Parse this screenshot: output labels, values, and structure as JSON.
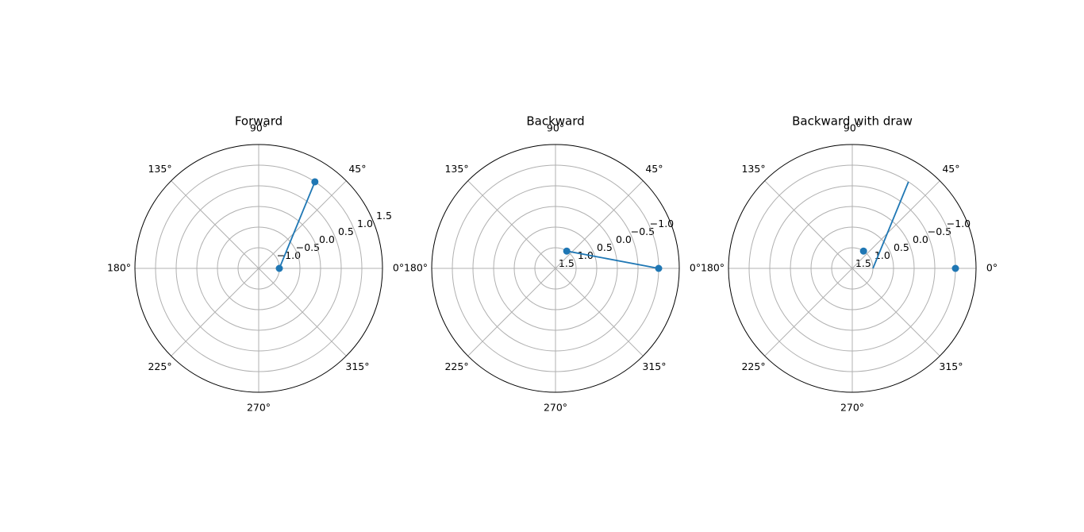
{
  "chart_data": [
    {
      "type": "polar",
      "title": "Forward",
      "series": [
        {
          "color": "#1f77b4",
          "theta": [
            0,
            57
          ],
          "r": [
            -1,
            1
          ]
        }
      ],
      "rlim": [
        -1.5,
        1.5
      ],
      "rticks": [
        {
          "value": -1,
          "label": "−1.0"
        },
        {
          "value": -0.5,
          "label": "−0.5"
        },
        {
          "value": 0,
          "label": "0.0"
        },
        0.5,
        {
          "value": 1,
          "label": "1.0"
        },
        1.5
      ],
      "thetaticks": [
        {
          "value": 0,
          "label": "0°"
        },
        {
          "value": 45,
          "label": "45°"
        },
        {
          "value": 90,
          "label": "90°"
        },
        {
          "value": 135,
          "label": "135°"
        },
        {
          "value": 180,
          "label": "180°"
        },
        {
          "value": 225,
          "label": "225°"
        },
        {
          "value": 270,
          "label": "270°"
        },
        {
          "value": 315,
          "label": "315°"
        }
      ],
      "grid": true
    },
    {
      "type": "polar",
      "title": "Backward",
      "series": [
        {
          "color": "#1f77b4",
          "theta": [
            0,
            57
          ],
          "r": [
            -1,
            1
          ]
        }
      ],
      "rlim": [
        1.5,
        -1.5
      ],
      "rticks": [
        1.5,
        {
          "value": 1,
          "label": "1.0"
        },
        0.5,
        {
          "value": 0,
          "label": "0.0"
        },
        {
          "value": -0.5,
          "label": "−0.5"
        },
        {
          "value": -1,
          "label": "−1.0"
        }
      ],
      "thetaticks": [
        {
          "value": 0,
          "label": "0°"
        },
        {
          "value": 45,
          "label": "45°"
        },
        {
          "value": 90,
          "label": "90°"
        },
        {
          "value": 135,
          "label": "135°"
        },
        {
          "value": 180,
          "label": "180°"
        },
        {
          "value": 225,
          "label": "225°"
        },
        {
          "value": 270,
          "label": "270°"
        },
        {
          "value": 315,
          "label": "315°"
        }
      ],
      "grid": true
    },
    {
      "type": "polar",
      "title": "Backward with draw",
      "series": [
        {
          "color": "#1f77b4",
          "theta": [
            0,
            57
          ],
          "r": [
            -1,
            1
          ]
        }
      ],
      "rlim": [
        1.5,
        -1.5
      ],
      "line_rlim": [
        -1.5,
        1.5
      ],
      "rticks": [
        1.5,
        {
          "value": 1,
          "label": "1.0"
        },
        0.5,
        {
          "value": 0,
          "label": "0.0"
        },
        {
          "value": -0.5,
          "label": "−0.5"
        },
        {
          "value": -1,
          "label": "−1.0"
        }
      ],
      "thetaticks": [
        {
          "value": 0,
          "label": "0°"
        },
        {
          "value": 45,
          "label": "45°"
        },
        {
          "value": 90,
          "label": "90°"
        },
        {
          "value": 135,
          "label": "135°"
        },
        {
          "value": 180,
          "label": "180°"
        },
        {
          "value": 225,
          "label": "225°"
        },
        {
          "value": 270,
          "label": "270°"
        },
        {
          "value": 315,
          "label": "315°"
        }
      ],
      "grid": true
    }
  ]
}
